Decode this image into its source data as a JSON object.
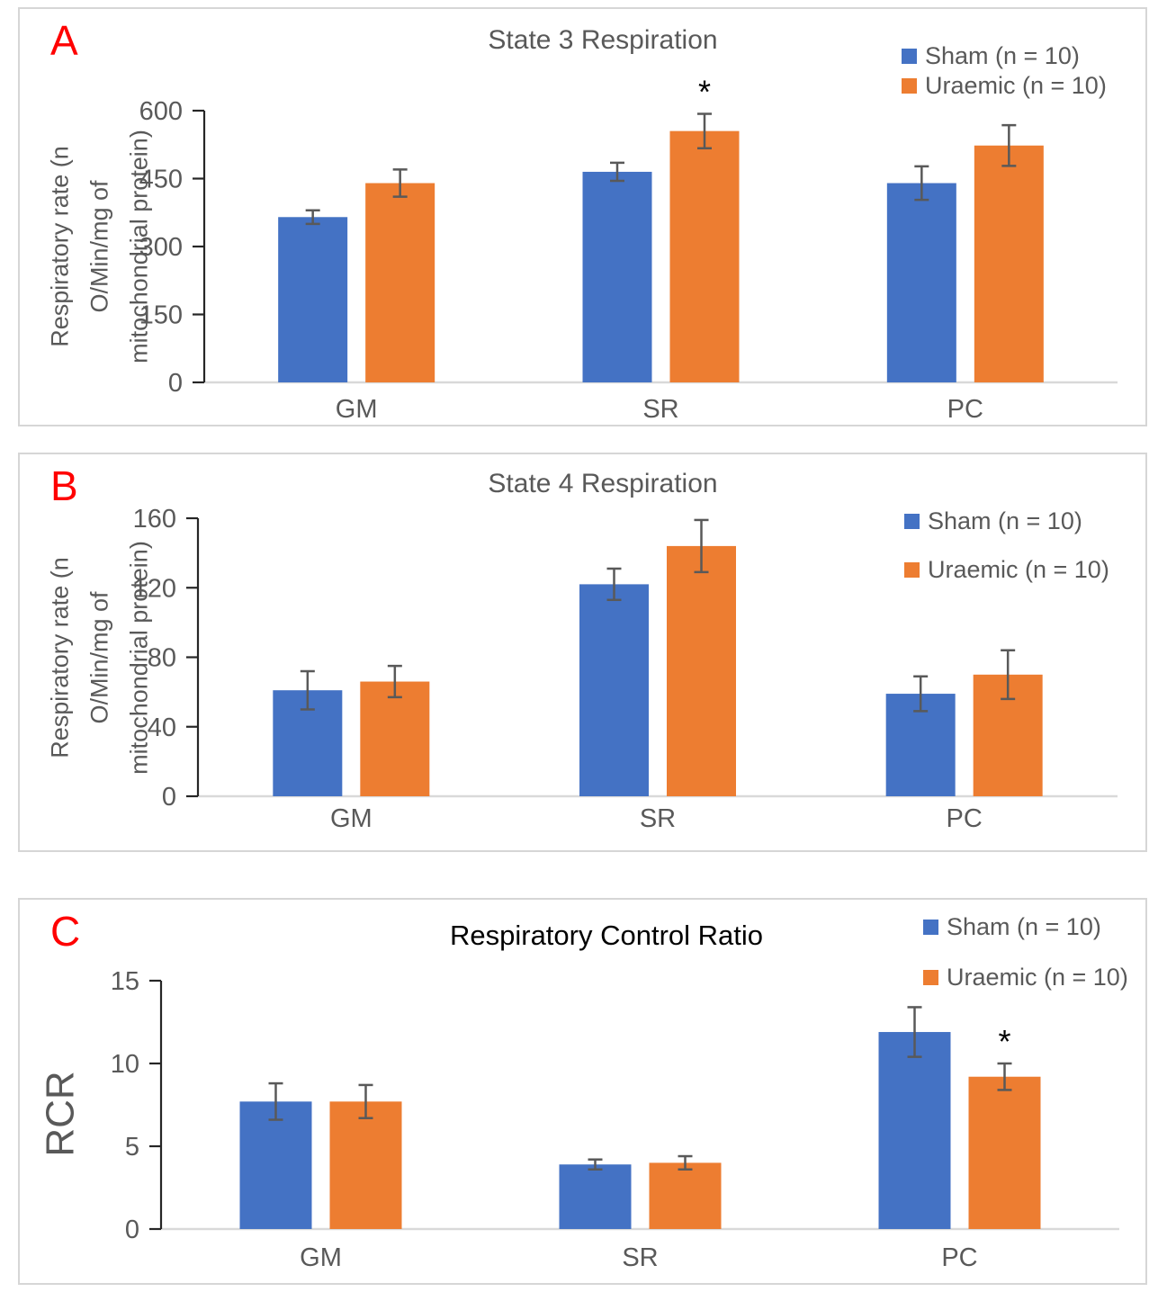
{
  "figure": {
    "panels": [
      {
        "letter": "A",
        "letter_color": "#ff0000",
        "title_color": "#595959"
      },
      {
        "letter": "B",
        "letter_color": "#ff0000",
        "title_color": "#595959"
      },
      {
        "letter": "C",
        "letter_color": "#ff0000",
        "title_color": "#000000"
      }
    ]
  },
  "colors": {
    "sham": "#4472C4",
    "uraemic": "#ED7D31",
    "axis": "#262626",
    "baseline": "#D9D9D9",
    "error_bar": "#595959",
    "tick_text": "#595959",
    "category_text": "#595959",
    "annotation": "#000000",
    "panel_border": "#d6d6d6"
  },
  "chart_data": [
    {
      "type": "bar",
      "title": "State 3 Respiration",
      "categories": [
        "GM",
        "SR",
        "PC"
      ],
      "series": [
        {
          "name": "Sham (n = 10)",
          "color": "#4472C4",
          "values": [
            365,
            465,
            440
          ],
          "errors": [
            15,
            20,
            37
          ]
        },
        {
          "name": "Uraemic (n = 10)",
          "color": "#ED7D31",
          "values": [
            440,
            555,
            523
          ],
          "errors": [
            30,
            38,
            45
          ]
        }
      ],
      "xlabel": "",
      "ylabel": "Respiratory rate (n O/Min/mg of mitochondrial protein)",
      "ylabel_lines": [
        "Respiratory rate (n",
        "O/Min/mg of",
        "mitochondrial protein)"
      ],
      "ylim": [
        0,
        600
      ],
      "yticks": [
        0,
        150,
        300,
        450,
        600
      ],
      "grid": false,
      "legend_position": "top-right",
      "annotations": [
        {
          "series": "Uraemic (n = 10)",
          "category": "SR",
          "text": "*"
        }
      ]
    },
    {
      "type": "bar",
      "title": "State 4 Respiration",
      "categories": [
        "GM",
        "SR",
        "PC"
      ],
      "series": [
        {
          "name": "Sham (n = 10)",
          "color": "#4472C4",
          "values": [
            61,
            122,
            59
          ],
          "errors": [
            11,
            9,
            10
          ]
        },
        {
          "name": "Uraemic (n = 10)",
          "color": "#ED7D31",
          "values": [
            66,
            144,
            70
          ],
          "errors": [
            9,
            15,
            14
          ]
        }
      ],
      "xlabel": "",
      "ylabel": "Respiratory rate (n O/Min/mg of mitochondrial protein)",
      "ylabel_lines": [
        "Respiratory rate (n",
        "O/Min/mg of",
        "mitochondrial protein)"
      ],
      "ylim": [
        0,
        160
      ],
      "yticks": [
        0,
        40,
        80,
        120,
        160
      ],
      "grid": false,
      "legend_position": "top-right",
      "annotations": []
    },
    {
      "type": "bar",
      "title": "Respiratory Control Ratio",
      "categories": [
        "GM",
        "SR",
        "PC"
      ],
      "series": [
        {
          "name": "Sham (n = 10)",
          "color": "#4472C4",
          "values": [
            7.7,
            3.9,
            11.9
          ],
          "errors": [
            1.1,
            0.3,
            1.5
          ]
        },
        {
          "name": "Uraemic (n = 10)",
          "color": "#ED7D31",
          "values": [
            7.7,
            4.0,
            9.2
          ],
          "errors": [
            1.0,
            0.4,
            0.8
          ]
        }
      ],
      "xlabel": "",
      "ylabel": "RCR",
      "ylabel_lines": [
        "RCR"
      ],
      "ylim": [
        0,
        15
      ],
      "yticks": [
        0,
        5,
        10,
        15
      ],
      "grid": false,
      "legend_position": "top-right",
      "annotations": [
        {
          "series": "Uraemic (n = 10)",
          "category": "PC",
          "text": "*"
        }
      ]
    }
  ]
}
